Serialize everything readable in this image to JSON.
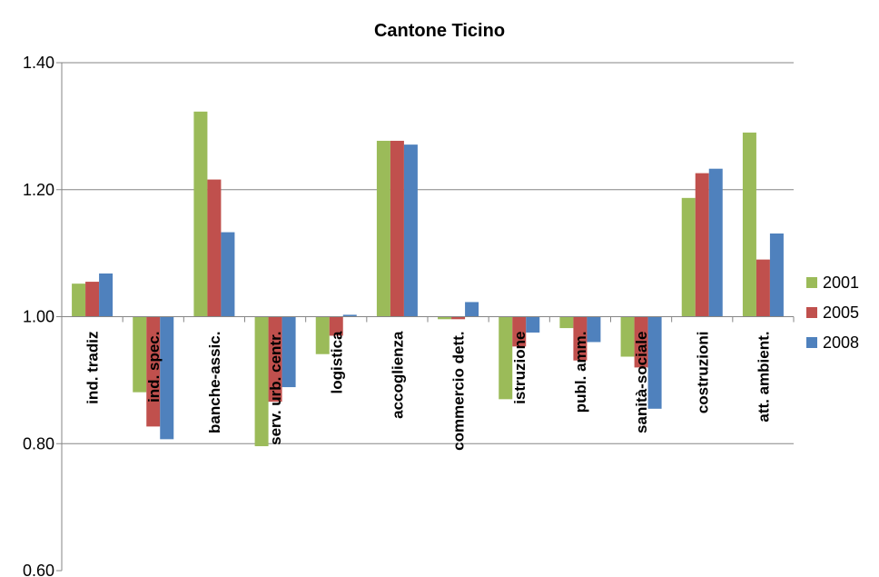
{
  "chart_data": {
    "type": "bar",
    "title": "Cantone Ticino",
    "xlabel": "",
    "ylabel": "",
    "ylim": [
      0.6,
      1.4
    ],
    "yticks": [
      "0.60",
      "0.80",
      "1.00",
      "1.20",
      "1.40"
    ],
    "baseline": 1.0,
    "grid": true,
    "legend_position": "right",
    "categories": [
      "ind. tradiz",
      "ind. spec.",
      "banche-assic.",
      "serv. urb. centr.",
      "logistica",
      "accoglienza",
      "commercio dett.",
      "istruzione",
      "publ. amm.",
      "sanità-sociale",
      "costruzioni",
      "att. ambient."
    ],
    "series": [
      {
        "name": "2001",
        "color": "#9BBB59",
        "values": [
          1.052,
          0.881,
          1.323,
          0.796,
          0.941,
          1.277,
          0.996,
          0.87,
          0.982,
          0.937,
          1.187,
          1.29
        ]
      },
      {
        "name": "2005",
        "color": "#C0504D",
        "values": [
          1.055,
          0.827,
          1.216,
          0.866,
          0.97,
          1.277,
          0.996,
          0.953,
          0.931,
          0.92,
          1.226,
          1.09
        ]
      },
      {
        "name": "2008",
        "color": "#4F81BD",
        "values": [
          1.068,
          0.807,
          1.133,
          0.889,
          1.003,
          1.271,
          1.023,
          0.975,
          0.96,
          0.855,
          1.233,
          1.131
        ]
      }
    ]
  }
}
